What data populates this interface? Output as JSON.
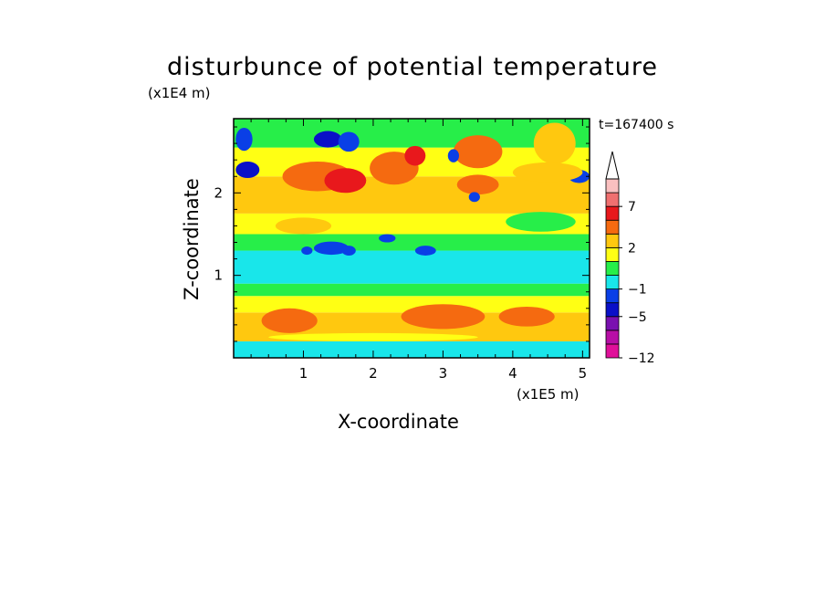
{
  "chart_data": {
    "type": "heatmap",
    "title": "disturbunce of potential temperature",
    "xlabel": "X-coordinate",
    "ylabel": "Z-coordinate",
    "x_unit": "(x1E5 m)",
    "y_unit": "(x1E4 m)",
    "time_label": "t=167400 s",
    "xlim": [
      0,
      5.1
    ],
    "ylim": [
      0,
      2.9
    ],
    "x_ticks": [
      "1",
      "2",
      "3",
      "4",
      "5"
    ],
    "y_ticks": [
      "1",
      "2"
    ],
    "colorbar": {
      "levels": [
        -12,
        -9,
        -7,
        -5,
        -3,
        -1,
        0,
        1,
        2,
        3,
        5,
        7,
        9,
        11
      ],
      "labels": [
        "-12",
        "-5",
        "-1",
        "2",
        "7"
      ],
      "colors": [
        "#e0109a",
        "#b80fa6",
        "#7a11b0",
        "#0a10c8",
        "#0a3fe6",
        "#19e6ea",
        "#27ee49",
        "#ffff14",
        "#ffc80f",
        "#f56a10",
        "#e8181c",
        "#f07070",
        "#fac0c0",
        "#ffffff"
      ]
    },
    "bands": [
      {
        "z_from": 0.0,
        "z_to": 0.2,
        "level": 5
      },
      {
        "z_from": 0.2,
        "z_to": 0.55,
        "level": 8
      },
      {
        "z_from": 0.55,
        "z_to": 0.75,
        "level": 7
      },
      {
        "z_from": 0.75,
        "z_to": 0.9,
        "level": 6
      },
      {
        "z_from": 0.9,
        "z_to": 1.3,
        "level": 5
      },
      {
        "z_from": 1.3,
        "z_to": 1.5,
        "level": 6
      },
      {
        "z_from": 1.5,
        "z_to": 1.75,
        "level": 7
      },
      {
        "z_from": 1.75,
        "z_to": 2.2,
        "level": 8
      },
      {
        "z_from": 2.2,
        "z_to": 2.55,
        "level": 7
      },
      {
        "z_from": 2.55,
        "z_to": 2.9,
        "level": 6
      }
    ],
    "blobs": [
      {
        "x": 0.2,
        "z": 2.28,
        "rx": 0.17,
        "rz": 0.1,
        "level": 3
      },
      {
        "x": 0.15,
        "z": 2.65,
        "rx": 0.12,
        "rz": 0.14,
        "level": 4
      },
      {
        "x": 1.35,
        "z": 2.65,
        "rx": 0.2,
        "rz": 0.1,
        "level": 3
      },
      {
        "x": 1.65,
        "z": 2.62,
        "rx": 0.15,
        "rz": 0.12,
        "level": 4
      },
      {
        "x": 1.2,
        "z": 2.2,
        "rx": 0.5,
        "rz": 0.18,
        "level": 9
      },
      {
        "x": 1.6,
        "z": 2.15,
        "rx": 0.3,
        "rz": 0.15,
        "level": 10
      },
      {
        "x": 2.3,
        "z": 2.3,
        "rx": 0.35,
        "rz": 0.2,
        "level": 9
      },
      {
        "x": 2.6,
        "z": 2.45,
        "rx": 0.15,
        "rz": 0.12,
        "level": 10
      },
      {
        "x": 3.5,
        "z": 2.5,
        "rx": 0.35,
        "rz": 0.2,
        "level": 9
      },
      {
        "x": 3.5,
        "z": 2.1,
        "rx": 0.3,
        "rz": 0.12,
        "level": 9
      },
      {
        "x": 4.6,
        "z": 2.6,
        "rx": 0.3,
        "rz": 0.25,
        "level": 8
      },
      {
        "x": 4.95,
        "z": 2.2,
        "rx": 0.15,
        "rz": 0.08,
        "level": 4
      },
      {
        "x": 3.15,
        "z": 2.45,
        "rx": 0.08,
        "rz": 0.08,
        "level": 4
      },
      {
        "x": 3.45,
        "z": 1.95,
        "rx": 0.08,
        "rz": 0.06,
        "level": 4
      },
      {
        "x": 1.4,
        "z": 1.33,
        "rx": 0.25,
        "rz": 0.08,
        "level": 4
      },
      {
        "x": 1.05,
        "z": 1.3,
        "rx": 0.08,
        "rz": 0.05,
        "level": 4
      },
      {
        "x": 1.65,
        "z": 1.3,
        "rx": 0.1,
        "rz": 0.06,
        "level": 4
      },
      {
        "x": 2.75,
        "z": 1.3,
        "rx": 0.15,
        "rz": 0.06,
        "level": 4
      },
      {
        "x": 2.2,
        "z": 1.45,
        "rx": 0.12,
        "rz": 0.05,
        "level": 4
      },
      {
        "x": 4.5,
        "z": 2.25,
        "rx": 0.5,
        "rz": 0.12,
        "level": 8
      },
      {
        "x": 0.8,
        "z": 0.45,
        "rx": 0.4,
        "rz": 0.15,
        "level": 9
      },
      {
        "x": 3.0,
        "z": 0.5,
        "rx": 0.6,
        "rz": 0.15,
        "level": 9
      },
      {
        "x": 4.2,
        "z": 0.5,
        "rx": 0.4,
        "rz": 0.12,
        "level": 9
      },
      {
        "x": 2.0,
        "z": 0.25,
        "rx": 1.5,
        "rz": 0.05,
        "level": 7
      },
      {
        "x": 4.4,
        "z": 1.65,
        "rx": 0.5,
        "rz": 0.12,
        "level": 6
      },
      {
        "x": 1.0,
        "z": 1.6,
        "rx": 0.4,
        "rz": 0.1,
        "level": 8
      }
    ]
  }
}
